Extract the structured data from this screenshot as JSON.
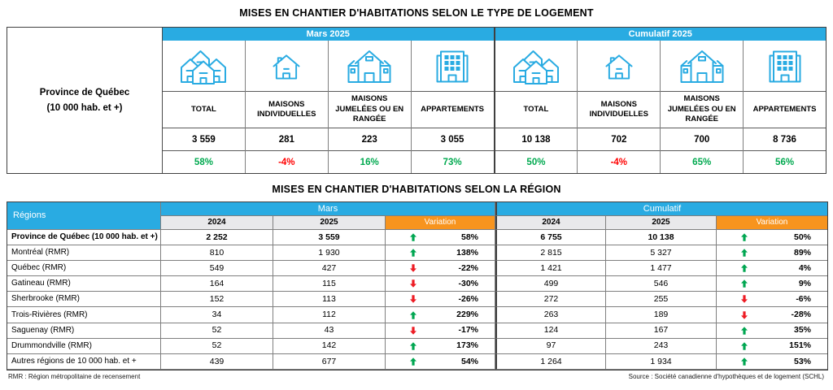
{
  "titles": {
    "type_table": "MISES EN CHANTIER D'HABITATIONS SELON LE TYPE DE LOGEMENT",
    "region_table": "MISES EN CHANTIER D'HABITATIONS SELON LA RÉGION"
  },
  "footnotes": {
    "left": "RMR : Région métropolitaine de recensement",
    "right": "Source : Société canadienne d'hypothèques et de logement (SCHL)"
  },
  "colors": {
    "header_blue": "#29ABE2",
    "variation_orange": "#F7941E",
    "positive_green": "#00A651",
    "negative_red": "#FF0000",
    "subheader_gray": "#E9E9EB",
    "icon_blue": "#29ABE2"
  },
  "type_table": {
    "row_header_line1": "Province de Québec",
    "row_header_line2": "(10 000 hab. et +)",
    "sections": [
      {
        "label": "Mars 2025",
        "columns": [
          {
            "icon": "houses-cluster-icon",
            "label": "TOTAL",
            "value": "3 559",
            "variation": "58%",
            "trend": "up"
          },
          {
            "icon": "single-house-icon",
            "label": "MAISONS INDIVIDUELLES",
            "value": "281",
            "variation": "-4%",
            "trend": "down"
          },
          {
            "icon": "semi-detached-house-icon",
            "label": "MAISONS JUMELÉES OU EN RANGÉE",
            "value": "223",
            "variation": "16%",
            "trend": "up"
          },
          {
            "icon": "apartment-building-icon",
            "label": "APPARTEMENTS",
            "value": "3 055",
            "variation": "73%",
            "trend": "up"
          }
        ]
      },
      {
        "label": "Cumulatif 2025",
        "columns": [
          {
            "icon": "houses-cluster-icon",
            "label": "TOTAL",
            "value": "10 138",
            "variation": "50%",
            "trend": "up"
          },
          {
            "icon": "single-house-icon",
            "label": "MAISONS INDIVIDUELLES",
            "value": "702",
            "variation": "-4%",
            "trend": "down"
          },
          {
            "icon": "semi-detached-house-icon",
            "label": "MAISONS JUMELÉES OU EN RANGÉE",
            "value": "700",
            "variation": "65%",
            "trend": "up"
          },
          {
            "icon": "apartment-building-icon",
            "label": "APPARTEMENTS",
            "value": "8 736",
            "variation": "56%",
            "trend": "up"
          }
        ]
      }
    ]
  },
  "regions_table": {
    "corner_label": "Régions",
    "section_labels": [
      "Mars",
      "Cumulatif"
    ],
    "column_headers": [
      "2024",
      "2025",
      "Variation"
    ],
    "rows": [
      {
        "name": "Province de Québec (10 000 hab. et +)",
        "bold": true,
        "mars": {
          "y2024": "2 252",
          "y2025": "3 559",
          "variation": "58%",
          "trend": "up"
        },
        "cumulatif": {
          "y2024": "6 755",
          "y2025": "10 138",
          "variation": "50%",
          "trend": "up"
        }
      },
      {
        "name": "Montréal (RMR)",
        "bold": false,
        "mars": {
          "y2024": "810",
          "y2025": "1 930",
          "variation": "138%",
          "trend": "up"
        },
        "cumulatif": {
          "y2024": "2 815",
          "y2025": "5 327",
          "variation": "89%",
          "trend": "up"
        }
      },
      {
        "name": "Québec (RMR)",
        "bold": false,
        "mars": {
          "y2024": "549",
          "y2025": "427",
          "variation": "-22%",
          "trend": "down"
        },
        "cumulatif": {
          "y2024": "1 421",
          "y2025": "1 477",
          "variation": "4%",
          "trend": "up"
        }
      },
      {
        "name": "Gatineau (RMR)",
        "bold": false,
        "mars": {
          "y2024": "164",
          "y2025": "115",
          "variation": "-30%",
          "trend": "down"
        },
        "cumulatif": {
          "y2024": "499",
          "y2025": "546",
          "variation": "9%",
          "trend": "up"
        }
      },
      {
        "name": "Sherbrooke (RMR)",
        "bold": false,
        "mars": {
          "y2024": "152",
          "y2025": "113",
          "variation": "-26%",
          "trend": "down"
        },
        "cumulatif": {
          "y2024": "272",
          "y2025": "255",
          "variation": "-6%",
          "trend": "down"
        }
      },
      {
        "name": "Trois-Rivières (RMR)",
        "bold": false,
        "mars": {
          "y2024": "34",
          "y2025": "112",
          "variation": "229%",
          "trend": "up"
        },
        "cumulatif": {
          "y2024": "263",
          "y2025": "189",
          "variation": "-28%",
          "trend": "down"
        }
      },
      {
        "name": "Saguenay (RMR)",
        "bold": false,
        "mars": {
          "y2024": "52",
          "y2025": "43",
          "variation": "-17%",
          "trend": "down"
        },
        "cumulatif": {
          "y2024": "124",
          "y2025": "167",
          "variation": "35%",
          "trend": "up"
        }
      },
      {
        "name": "Drummondville (RMR)",
        "bold": false,
        "mars": {
          "y2024": "52",
          "y2025": "142",
          "variation": "173%",
          "trend": "up"
        },
        "cumulatif": {
          "y2024": "97",
          "y2025": "243",
          "variation": "151%",
          "trend": "up"
        }
      },
      {
        "name": "Autres régions de 10 000 hab. et +",
        "bold": false,
        "mars": {
          "y2024": "439",
          "y2025": "677",
          "variation": "54%",
          "trend": "up"
        },
        "cumulatif": {
          "y2024": "1 264",
          "y2025": "1 934",
          "variation": "53%",
          "trend": "up"
        }
      }
    ]
  }
}
